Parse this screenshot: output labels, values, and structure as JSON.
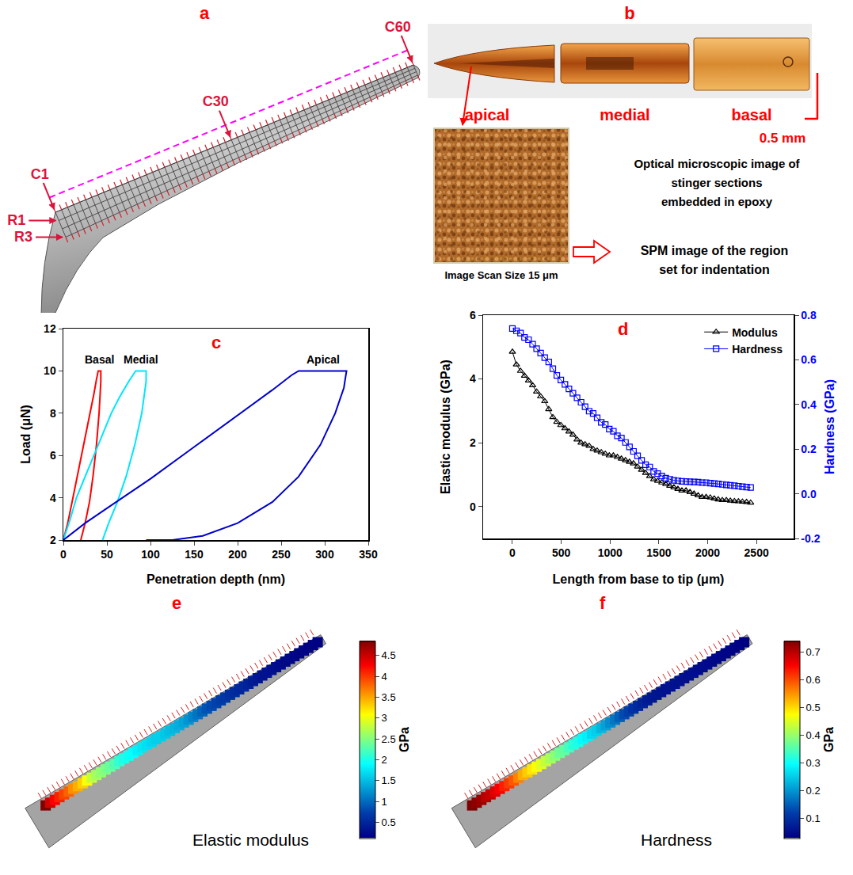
{
  "figure": {
    "a": {
      "panel": "a",
      "column_labels": [
        "C1",
        "C30",
        "C60"
      ],
      "row_labels": [
        "R1",
        "R3"
      ]
    },
    "b": {
      "panel": "b",
      "sections": [
        "apical",
        "medial",
        "basal"
      ],
      "scale_bar": "0.5 mm",
      "optical_caption": [
        "Optical microscopic image of",
        "stinger sections",
        "embedded in epoxy"
      ],
      "spm_caption": "Image Scan Size 15 μm",
      "spm_note": [
        "SPM image of the region",
        "set for indentation"
      ]
    }
  },
  "chart_data": [
    {
      "type": "line",
      "panel": "c",
      "x_label": "Penetration depth (nm)",
      "y_label": "Load (μN)",
      "xlim": [
        0,
        350
      ],
      "xticks": [
        0,
        50,
        100,
        150,
        200,
        250,
        300,
        350
      ],
      "ylim": [
        2,
        12
      ],
      "yticks": [
        2,
        4,
        6,
        8,
        10,
        12
      ],
      "grid": false,
      "series": [
        {
          "name": "Basal",
          "color": "#ff0000",
          "x": [
            0,
            5,
            10,
            15,
            20,
            25,
            30,
            35,
            38,
            40,
            42,
            43,
            43,
            41,
            38,
            34,
            30,
            25,
            20
          ],
          "values": [
            2,
            2.8,
            3.8,
            4.8,
            5.8,
            6.8,
            7.8,
            8.9,
            9.6,
            10,
            10,
            10,
            9.5,
            8,
            6.5,
            5,
            3.8,
            2.8,
            2
          ]
        },
        {
          "name": "Medial",
          "color": "#00e5ff",
          "x": [
            0,
            8,
            15,
            25,
            35,
            45,
            55,
            65,
            75,
            83,
            88,
            95,
            95,
            90,
            82,
            72,
            62,
            52,
            45
          ],
          "values": [
            2,
            3,
            4,
            5,
            6,
            7,
            8,
            8.8,
            9.5,
            10,
            10,
            10,
            9.5,
            8,
            6.5,
            5,
            3.8,
            2.8,
            2
          ]
        },
        {
          "name": "Apical",
          "color": "#0000cd",
          "x": [
            0,
            25,
            50,
            100,
            150,
            200,
            240,
            262,
            270,
            300,
            325,
            322,
            312,
            295,
            270,
            240,
            200,
            160,
            125,
            95
          ],
          "values": [
            2,
            2.8,
            3.5,
            4.9,
            6.4,
            7.9,
            9.1,
            9.8,
            10,
            10,
            10,
            9.2,
            8,
            6.5,
            5,
            3.8,
            2.8,
            2.2,
            2,
            2
          ]
        }
      ]
    },
    {
      "type": "line",
      "panel": "d",
      "x_label": "Length from base to tip (μm)",
      "y_label": "Elastic modulus (GPa)",
      "y2_label": "Hardness (GPa)",
      "xlim": [
        -300,
        2880
      ],
      "xticks": [
        0,
        500,
        1000,
        1500,
        2000,
        2500
      ],
      "ylim": [
        -1,
        6
      ],
      "yticks": [
        0,
        2,
        4,
        6
      ],
      "y2lim": [
        -0.2,
        0.8
      ],
      "y2ticks": [
        -0.2,
        {
          "value": 0,
          "label": "0.0"
        },
        0.2,
        0.4,
        0.6,
        0.8
      ],
      "grid": false,
      "legend": "top right",
      "x": [
        0,
        41,
        83,
        124,
        165,
        207,
        248,
        289,
        331,
        372,
        414,
        455,
        496,
        538,
        579,
        620,
        662,
        703,
        744,
        786,
        827,
        868,
        910,
        951,
        992,
        1034,
        1075,
        1116,
        1158,
        1199,
        1240,
        1282,
        1323,
        1364,
        1406,
        1447,
        1488,
        1530,
        1571,
        1612,
        1654,
        1695,
        1736,
        1778,
        1819,
        1860,
        1902,
        1943,
        1984,
        2026,
        2067,
        2108,
        2150,
        2191,
        2232,
        2274,
        2315,
        2356,
        2398,
        2440
      ],
      "series": [
        {
          "name": "Modulus",
          "color": "#000000",
          "marker": "triangle-up-open",
          "line_style": "solid",
          "values": [
            4.85,
            4.45,
            4.25,
            4.1,
            3.95,
            3.8,
            3.6,
            3.45,
            3.3,
            3.05,
            2.8,
            2.65,
            2.55,
            2.45,
            2.35,
            2.25,
            2.1,
            2.0,
            1.95,
            1.9,
            1.8,
            1.75,
            1.7,
            1.65,
            1.6,
            1.6,
            1.55,
            1.5,
            1.45,
            1.4,
            1.35,
            1.25,
            1.15,
            1.05,
            0.95,
            0.85,
            0.8,
            0.75,
            0.7,
            0.65,
            0.6,
            0.55,
            0.5,
            0.5,
            0.45,
            0.4,
            0.35,
            0.3,
            0.3,
            0.28,
            0.25,
            0.22,
            0.2,
            0.2,
            0.18,
            0.17,
            0.16,
            0.15,
            0.14,
            0.12
          ]
        },
        {
          "name": "Hardness",
          "color": "#0000ff",
          "marker": "square-open",
          "line_style": "solid",
          "axis": "y2",
          "values": [
            0.74,
            0.73,
            0.72,
            0.7,
            0.69,
            0.67,
            0.65,
            0.63,
            0.61,
            0.59,
            0.56,
            0.53,
            0.51,
            0.49,
            0.47,
            0.45,
            0.43,
            0.41,
            0.39,
            0.37,
            0.36,
            0.34,
            0.32,
            0.31,
            0.29,
            0.28,
            0.26,
            0.25,
            0.23,
            0.21,
            0.19,
            0.17,
            0.15,
            0.13,
            0.12,
            0.1,
            0.09,
            0.08,
            0.07,
            0.065,
            0.06,
            0.058,
            0.056,
            0.055,
            0.054,
            0.053,
            0.052,
            0.05,
            0.05,
            0.048,
            0.046,
            0.044,
            0.042,
            0.04,
            0.038,
            0.036,
            0.034,
            0.032,
            0.03,
            0.028
          ]
        }
      ]
    },
    {
      "type": "scatter",
      "panel": "e",
      "title": "Elastic modulus",
      "tick_labels": false,
      "x": [
        0,
        41,
        83,
        124,
        165,
        207,
        248,
        289,
        331,
        372,
        414,
        455,
        496,
        538,
        579,
        620,
        662,
        703,
        744,
        786,
        827,
        868,
        910,
        951,
        992,
        1034,
        1075,
        1116,
        1158,
        1199,
        1240,
        1282,
        1323,
        1364,
        1406,
        1447,
        1488,
        1530,
        1571,
        1612,
        1654,
        1695,
        1736,
        1778,
        1819,
        1860,
        1902,
        1943,
        1984,
        2026,
        2067,
        2108,
        2150,
        2191,
        2232,
        2274,
        2315,
        2356,
        2398,
        2440
      ],
      "values": [
        4.85,
        4.45,
        4.25,
        4.1,
        3.95,
        3.8,
        3.6,
        3.45,
        3.3,
        3.05,
        2.8,
        2.65,
        2.55,
        2.45,
        2.35,
        2.25,
        2.1,
        2.0,
        1.95,
        1.9,
        1.8,
        1.75,
        1.7,
        1.65,
        1.6,
        1.6,
        1.55,
        1.5,
        1.45,
        1.4,
        1.35,
        1.25,
        1.15,
        1.05,
        0.95,
        0.85,
        0.8,
        0.75,
        0.7,
        0.65,
        0.6,
        0.55,
        0.5,
        0.5,
        0.45,
        0.4,
        0.35,
        0.3,
        0.3,
        0.28,
        0.25,
        0.22,
        0.2,
        0.2,
        0.18,
        0.17,
        0.16,
        0.15,
        0.14,
        0.12
      ],
      "colorbar": {
        "title": "GPa",
        "range": [
          0.12,
          4.85
        ],
        "ticks": [
          0.5,
          1,
          1.5,
          2,
          2.5,
          3,
          3.5,
          4,
          4.5
        ]
      }
    },
    {
      "type": "scatter",
      "panel": "f",
      "title": "Hardness",
      "tick_labels": false,
      "x": [
        0,
        41,
        83,
        124,
        165,
        207,
        248,
        289,
        331,
        372,
        414,
        455,
        496,
        538,
        579,
        620,
        662,
        703,
        744,
        786,
        827,
        868,
        910,
        951,
        992,
        1034,
        1075,
        1116,
        1158,
        1199,
        1240,
        1282,
        1323,
        1364,
        1406,
        1447,
        1488,
        1530,
        1571,
        1612,
        1654,
        1695,
        1736,
        1778,
        1819,
        1860,
        1902,
        1943,
        1984,
        2026,
        2067,
        2108,
        2150,
        2191,
        2232,
        2274,
        2315,
        2356,
        2398,
        2440
      ],
      "values": [
        0.74,
        0.73,
        0.72,
        0.7,
        0.69,
        0.67,
        0.65,
        0.63,
        0.61,
        0.59,
        0.56,
        0.53,
        0.51,
        0.49,
        0.47,
        0.45,
        0.43,
        0.41,
        0.39,
        0.37,
        0.36,
        0.34,
        0.32,
        0.31,
        0.29,
        0.28,
        0.26,
        0.25,
        0.23,
        0.21,
        0.19,
        0.17,
        0.15,
        0.13,
        0.12,
        0.1,
        0.09,
        0.08,
        0.07,
        0.065,
        0.06,
        0.058,
        0.056,
        0.055,
        0.054,
        0.053,
        0.052,
        0.05,
        0.05,
        0.048,
        0.046,
        0.044,
        0.042,
        0.04,
        0.038,
        0.036,
        0.034,
        0.032,
        0.03,
        0.028
      ],
      "colorbar": {
        "title": "GPa",
        "range": [
          0.028,
          0.74
        ],
        "ticks": [
          0.1,
          0.2,
          0.3,
          0.4,
          0.5,
          0.6,
          0.7
        ]
      }
    }
  ]
}
